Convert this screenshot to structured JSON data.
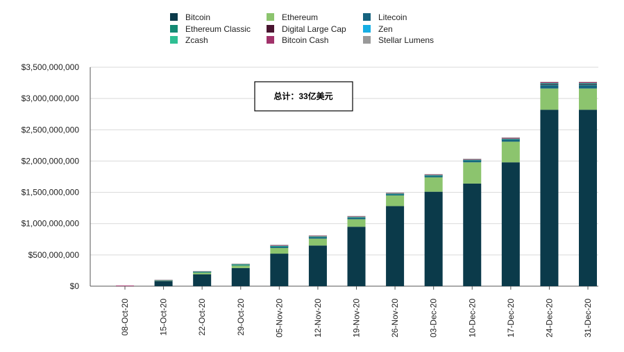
{
  "chart_data": {
    "type": "bar",
    "stacked": true,
    "categories": [
      "08-Oct-20",
      "15-Oct-20",
      "22-Oct-20",
      "29-Oct-20",
      "05-Nov-20",
      "12-Nov-20",
      "19-Nov-20",
      "26-Nov-20",
      "03-Dec-20",
      "10-Dec-20",
      "17-Dec-20",
      "24-Dec-20",
      "31-Dec-20"
    ],
    "series": [
      {
        "name": "Bitcoin",
        "color": "#0b3a4a",
        "values": [
          0,
          80000000,
          190000000,
          290000000,
          520000000,
          650000000,
          950000000,
          1280000000,
          1510000000,
          1640000000,
          1980000000,
          2820000000,
          2820000000
        ]
      },
      {
        "name": "Ethereum",
        "color": "#8cc46e",
        "values": [
          0,
          10000000,
          30000000,
          40000000,
          90000000,
          110000000,
          120000000,
          170000000,
          230000000,
          340000000,
          330000000,
          340000000,
          340000000
        ]
      },
      {
        "name": "Litecoin",
        "color": "#16637f",
        "values": [
          0,
          3000000,
          5000000,
          8000000,
          20000000,
          20000000,
          20000000,
          15000000,
          20000000,
          25000000,
          30000000,
          50000000,
          50000000
        ]
      },
      {
        "name": "Ethereum Classic",
        "color": "#148a74",
        "values": [
          0,
          1000000,
          3000000,
          3000000,
          5000000,
          5000000,
          5000000,
          5000000,
          5000000,
          5000000,
          5000000,
          10000000,
          10000000
        ]
      },
      {
        "name": "Digital Large Cap",
        "color": "#4a1530",
        "values": [
          0,
          2000000,
          3000000,
          5000000,
          5000000,
          5000000,
          5000000,
          5000000,
          5000000,
          5000000,
          5000000,
          15000000,
          15000000
        ]
      },
      {
        "name": "Zen",
        "color": "#17aee3",
        "values": [
          0,
          1000000,
          1000000,
          1000000,
          2000000,
          2000000,
          2000000,
          2000000,
          2000000,
          2000000,
          3000000,
          5000000,
          5000000
        ]
      },
      {
        "name": "Zcash",
        "color": "#2fbf93",
        "values": [
          0,
          1000000,
          2000000,
          2000000,
          3000000,
          3000000,
          3000000,
          3000000,
          3000000,
          3000000,
          3000000,
          5000000,
          5000000
        ]
      },
      {
        "name": "Bitcoin Cash",
        "color": "#a1326a",
        "values": [
          10000000,
          3000000,
          6000000,
          10000000,
          15000000,
          15000000,
          15000000,
          15000000,
          15000000,
          15000000,
          20000000,
          20000000,
          20000000
        ]
      },
      {
        "name": "Stellar Lumens",
        "color": "#999999",
        "values": [
          0,
          1000000,
          1000000,
          1000000,
          1000000,
          1000000,
          1000000,
          1000000,
          1000000,
          1000000,
          1000000,
          2000000,
          2000000
        ]
      }
    ],
    "legend_order": [
      "Bitcoin",
      "Ethereum",
      "Litecoin",
      "Ethereum Classic",
      "Digital Large Cap",
      "Zen",
      "Zcash",
      "Bitcoin Cash",
      "Stellar Lumens"
    ],
    "y_ticks": [
      0,
      500000000,
      1000000000,
      1500000000,
      2000000000,
      2500000000,
      3000000000,
      3500000000
    ],
    "y_tick_labels": [
      "$0",
      "$500,000,000",
      "$1,000,000,000",
      "$1,500,000,000",
      "$2,000,000,000",
      "$2,500,000,000",
      "$3,000,000,000",
      "$3,500,000,000"
    ],
    "ylim": [
      0,
      3500000000
    ],
    "grid": true,
    "legend_position": "top",
    "annotation": "总计：33亿美元",
    "title": "",
    "xlabel": "",
    "ylabel": ""
  }
}
